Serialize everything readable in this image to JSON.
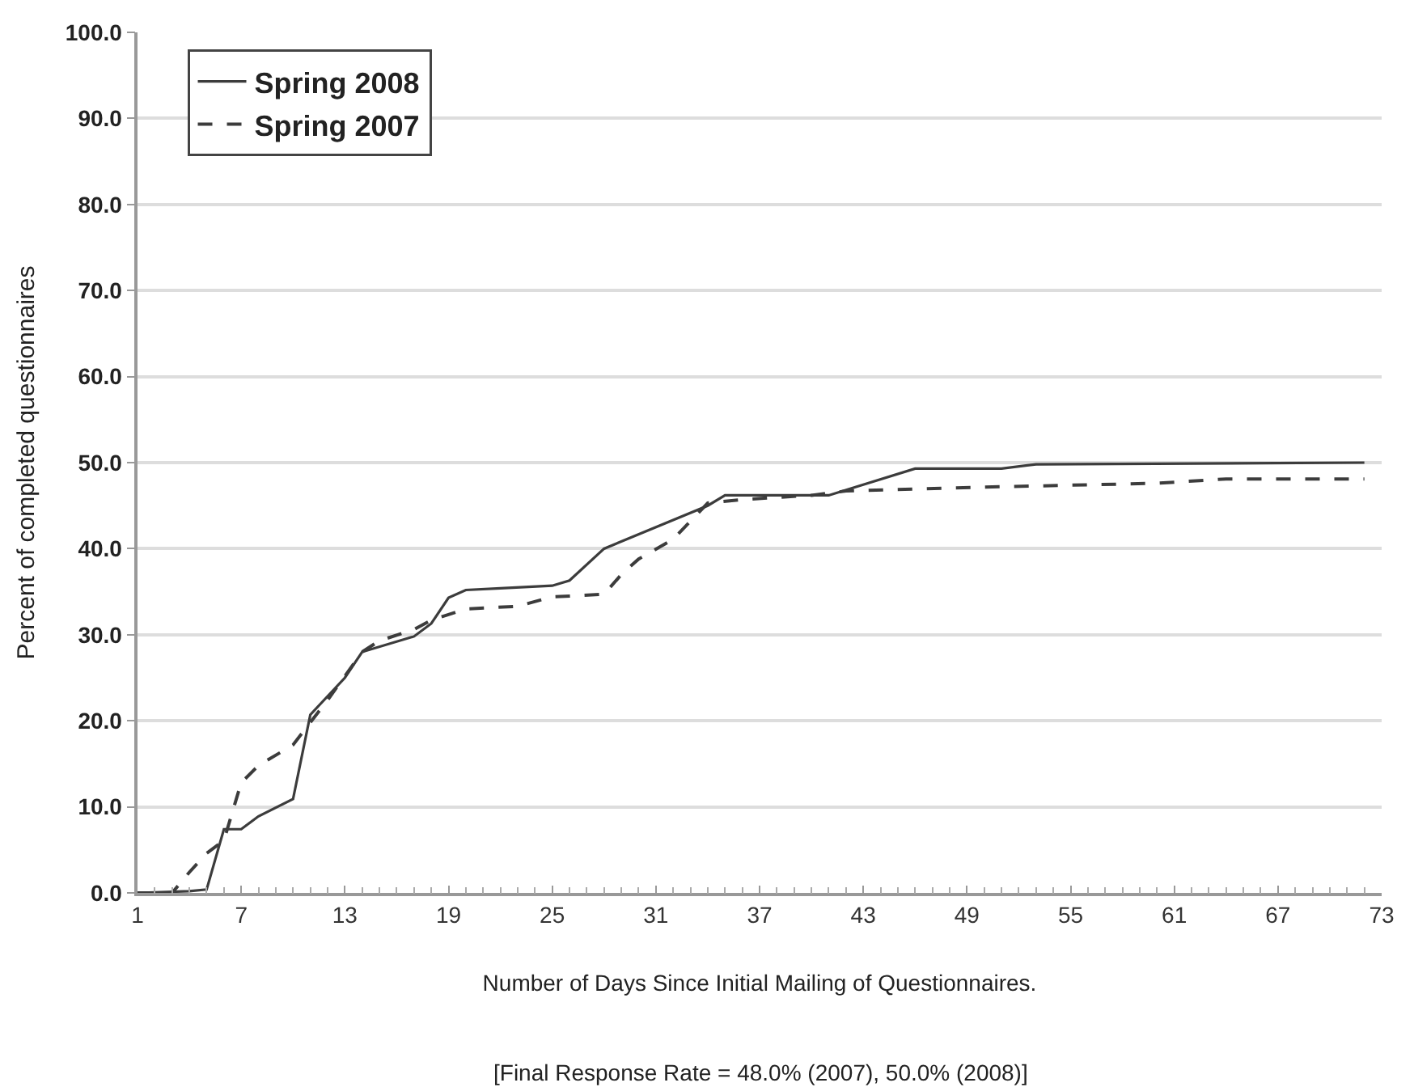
{
  "chart_data": {
    "type": "line",
    "ylabel": "Percent of completed questionnaires",
    "xlabel": "Number of Days Since Initial Mailing of Questionnaires.",
    "annotations": [
      "[Final Response Rate = 48.0% (2007), 50.0% (2008)]"
    ],
    "series": [
      {
        "name": "Spring 2008",
        "color": "#3c3c3c",
        "line_style": "solid",
        "x": [
          1,
          4,
          5,
          6,
          7,
          8,
          10,
          11,
          13,
          14,
          17,
          18,
          19,
          20,
          22,
          25,
          26,
          28,
          34,
          35,
          41,
          46,
          51,
          53,
          72
        ],
        "values": [
          0,
          0.2,
          0.4,
          7.4,
          7.4,
          8.9,
          10.9,
          20.7,
          25,
          28,
          29.8,
          31.3,
          34.3,
          35.2,
          35.4,
          35.7,
          36.3,
          40,
          45,
          46.2,
          46.2,
          49.3,
          49.3,
          49.8,
          50
        ]
      },
      {
        "name": "Spring 2007",
        "color": "#3c3c3c",
        "line_style": "dashed",
        "x": [
          1,
          3,
          4,
          5,
          6,
          7,
          8,
          10,
          11,
          12,
          13,
          14,
          15,
          17,
          18,
          20,
          23,
          25,
          28,
          29,
          30,
          32,
          33,
          34,
          36,
          40,
          42,
          51,
          60,
          64,
          72
        ],
        "values": [
          0,
          0,
          2.4,
          4.6,
          6.1,
          12.8,
          14.8,
          17.2,
          19.8,
          22.4,
          25.2,
          28,
          29.3,
          30.6,
          31.7,
          33,
          33.3,
          34.4,
          34.7,
          37,
          38.8,
          41.1,
          43.2,
          45.3,
          45.7,
          46.2,
          46.7,
          47.2,
          47.6,
          48.1,
          48.1
        ]
      }
    ],
    "xlim": [
      1,
      73
    ],
    "xticks": [
      1,
      7,
      13,
      19,
      25,
      31,
      37,
      43,
      49,
      55,
      61,
      67,
      73
    ],
    "ylim": [
      0,
      100
    ],
    "yticks": [
      {
        "value": 0,
        "label": "0.0"
      },
      {
        "value": 10,
        "label": "10.0"
      },
      {
        "value": 20,
        "label": "20.0"
      },
      {
        "value": 30,
        "label": "30.0"
      },
      {
        "value": 40,
        "label": "40.0"
      },
      {
        "value": 50,
        "label": "50.0"
      },
      {
        "value": 60,
        "label": "60.0"
      },
      {
        "value": 70,
        "label": "70.0"
      },
      {
        "value": 80,
        "label": "80.0"
      },
      {
        "value": 90,
        "label": "90.0"
      },
      {
        "value": 100,
        "label": "100.0"
      }
    ],
    "grid": "y",
    "legend": "top left",
    "marker": "none"
  }
}
